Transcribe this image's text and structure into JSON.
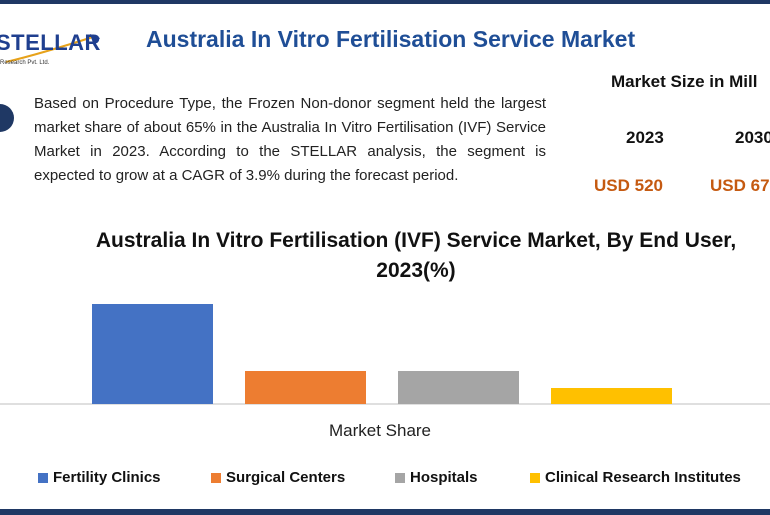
{
  "header": {
    "title": "Australia In Vitro Fertilisation Service Market",
    "logo_name": "STELLAR",
    "logo_sub": "Research Pvt. Ltd."
  },
  "description": "Based on Procedure Type, the Frozen Non-donor segment held the largest market share of about 65% in the Australia In Vitro Fertilisation (IVF) Service Market in 2023. According to the STELLAR analysis, the segment is expected to grow at a CAGR of 3.9% during the forecast period.",
  "market_size": {
    "title": "Market Size in Mill",
    "year_1": "2023",
    "year_2": "2030",
    "value_1": "USD 520",
    "value_2": "USD 67"
  },
  "colors": {
    "brand": "#1f3864",
    "title_blue": "#1f4e96",
    "value_orange": "#c55a11"
  },
  "chart_data": {
    "type": "bar",
    "title": "Australia In Vitro Fertilisation (IVF) Service Market, By End User, 2023(%)",
    "xlabel": "Market Share",
    "ylabel": "",
    "categories": [
      "Fertility Clinics",
      "Surgical Centers",
      "Hospitals",
      "Clinical Research Institutes"
    ],
    "values": [
      100,
      33,
      33,
      16
    ],
    "colors": [
      "#4472c4",
      "#ed7d31",
      "#a5a5a5",
      "#ffc000"
    ],
    "ylim": [
      0,
      100
    ],
    "grid": false,
    "legend": "bottom"
  }
}
